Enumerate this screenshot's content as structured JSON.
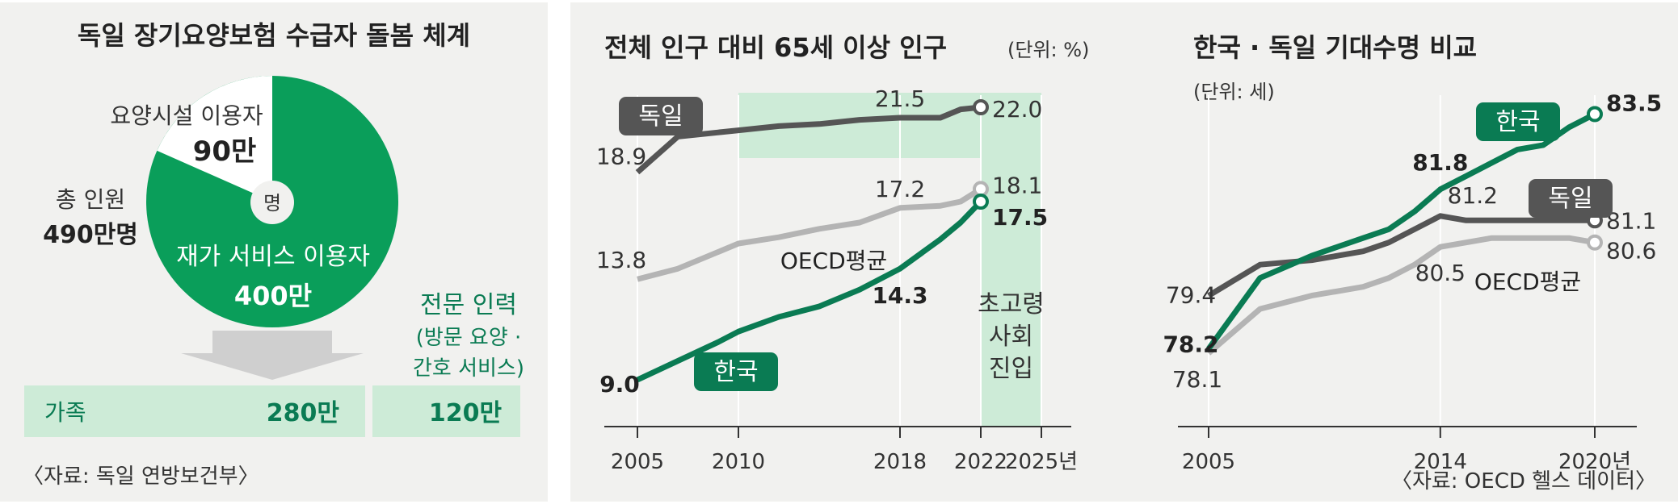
{
  "colors": {
    "green": "#0a7b53",
    "green_pie": "#0a9e5a",
    "gray_dark": "#555555",
    "gray_light": "#b4b4b4",
    "mint": "#cdebd7",
    "panel_bg": "#f1f1ef"
  },
  "care": {
    "title": "독일 장기요양보험 수급자 돌봄 체계",
    "center_unit": "명",
    "total_label": "총 인원",
    "total_value": "490만명",
    "facility_label": "요양시설 이용자",
    "facility_value": "90만",
    "home_label": "재가 서비스 이용자",
    "home_value": "400만",
    "pro_title": "전문 인력",
    "pro_line2": "(방문 요양 ·",
    "pro_line3": "간호 서비스)",
    "family_label": "가족",
    "family_value": "280만",
    "pro_value": "120만",
    "source": "〈자료: 독일 연방보건부〉"
  },
  "aging": {
    "title": "전체 인구 대비 65세 이상 인구",
    "unit": "(단위: %)",
    "shade_label_line1": "초고령",
    "shade_label_line2": "사회",
    "shade_label_line3": "진입",
    "legend_germany": "독일",
    "legend_korea": "한국",
    "legend_oecd": "OECD평균",
    "x_ticks": [
      "2005",
      "2010",
      "2018",
      "2022",
      "2025년"
    ]
  },
  "life": {
    "title": "한국 · 독일 기대수명 비교",
    "unit": "(단위: 세)",
    "legend_korea": "한국",
    "legend_germany": "독일",
    "legend_oecd": "OECD평균",
    "x_ticks": [
      "2005",
      "2014",
      "2020년"
    ],
    "source": "〈자료: OECD 헬스 데이터〉"
  },
  "chart_data": [
    {
      "type": "pie",
      "title": "독일 장기요양보험 수급자 돌봄 체계",
      "total": 490,
      "unit": "만명",
      "slices": [
        {
          "label": "요양시설 이용자",
          "value": 90
        },
        {
          "label": "재가 서비스 이용자",
          "value": 400
        }
      ],
      "breakdown": {
        "of": "재가 서비스 이용자",
        "items": [
          {
            "label": "가족",
            "value": 280
          },
          {
            "label": "전문 인력",
            "value": 120
          }
        ]
      }
    },
    {
      "type": "line",
      "title": "전체 인구 대비 65세 이상 인구",
      "ylabel": "%",
      "xlim": [
        2005,
        2025
      ],
      "ylim": [
        8,
        24
      ],
      "grid": "vertical",
      "series": [
        {
          "name": "독일",
          "x": [
            2005,
            2007,
            2010,
            2012,
            2014,
            2016,
            2018,
            2020,
            2021,
            2022
          ],
          "y": [
            18.9,
            20.6,
            20.9,
            21.1,
            21.2,
            21.4,
            21.5,
            21.5,
            21.9,
            22.0
          ]
        },
        {
          "name": "OECD평균",
          "x": [
            2005,
            2007,
            2010,
            2012,
            2014,
            2016,
            2018,
            2020,
            2021,
            2022
          ],
          "y": [
            13.8,
            14.3,
            15.5,
            15.8,
            16.2,
            16.5,
            17.2,
            17.3,
            17.5,
            18.1
          ]
        },
        {
          "name": "한국",
          "x": [
            2005,
            2007,
            2009,
            2010,
            2012,
            2014,
            2016,
            2018,
            2020,
            2021,
            2022
          ],
          "y": [
            9.0,
            9.9,
            10.8,
            11.3,
            12.0,
            12.5,
            13.3,
            14.3,
            15.7,
            16.5,
            17.5
          ]
        }
      ],
      "annotations": [
        {
          "series": "독일",
          "x": 2005,
          "label": "18.9"
        },
        {
          "series": "독일",
          "x": 2018,
          "label": "21.5"
        },
        {
          "series": "독일",
          "x": 2022,
          "label": "22.0"
        },
        {
          "series": "OECD평균",
          "x": 2005,
          "label": "13.8"
        },
        {
          "series": "OECD평균",
          "x": 2018,
          "label": "17.2"
        },
        {
          "series": "OECD평균",
          "x": 2022,
          "label": "18.1"
        },
        {
          "series": "한국",
          "x": 2005,
          "label": "9.0"
        },
        {
          "series": "한국",
          "x": 2018,
          "label": "14.3"
        },
        {
          "series": "한국",
          "x": 2022,
          "label": "17.5"
        }
      ],
      "shaded_x_range": [
        2022,
        2025
      ]
    },
    {
      "type": "line",
      "title": "한국 · 독일 기대수명 비교",
      "ylabel": "세",
      "xlim": [
        2005,
        2020
      ],
      "ylim": [
        77.5,
        84
      ],
      "grid": "vertical",
      "series": [
        {
          "name": "한국",
          "x": [
            2005,
            2007,
            2009,
            2011,
            2012,
            2013,
            2014,
            2015,
            2016,
            2017,
            2018,
            2019,
            2020
          ],
          "y": [
            78.2,
            79.8,
            80.3,
            80.7,
            80.9,
            81.3,
            81.8,
            82.1,
            82.4,
            82.7,
            82.8,
            83.2,
            83.5
          ]
        },
        {
          "name": "독일",
          "x": [
            2005,
            2007,
            2009,
            2011,
            2012,
            2013,
            2014,
            2015,
            2016,
            2017,
            2018,
            2019,
            2020
          ],
          "y": [
            79.4,
            80.1,
            80.2,
            80.4,
            80.6,
            80.9,
            81.2,
            81.1,
            81.1,
            81.1,
            81.1,
            81.1,
            81.1
          ]
        },
        {
          "name": "OECD평균",
          "x": [
            2005,
            2007,
            2009,
            2011,
            2012,
            2013,
            2014,
            2015,
            2016,
            2017,
            2018,
            2019,
            2020
          ],
          "y": [
            78.1,
            79.1,
            79.4,
            79.6,
            79.8,
            80.1,
            80.5,
            80.6,
            80.7,
            80.7,
            80.7,
            80.7,
            80.6
          ]
        }
      ],
      "annotations": [
        {
          "series": "독일",
          "x": 2005,
          "label": "79.4"
        },
        {
          "series": "한국",
          "x": 2005,
          "label": "78.2"
        },
        {
          "series": "OECD평균",
          "x": 2005,
          "label": "78.1"
        },
        {
          "series": "한국",
          "x": 2014,
          "label": "81.8"
        },
        {
          "series": "독일",
          "x": 2014,
          "label": "81.2"
        },
        {
          "series": "OECD평균",
          "x": 2014,
          "label": "80.5"
        },
        {
          "series": "한국",
          "x": 2020,
          "label": "83.5"
        },
        {
          "series": "독일",
          "x": 2020,
          "label": "81.1"
        },
        {
          "series": "OECD평균",
          "x": 2020,
          "label": "80.6"
        }
      ]
    }
  ]
}
